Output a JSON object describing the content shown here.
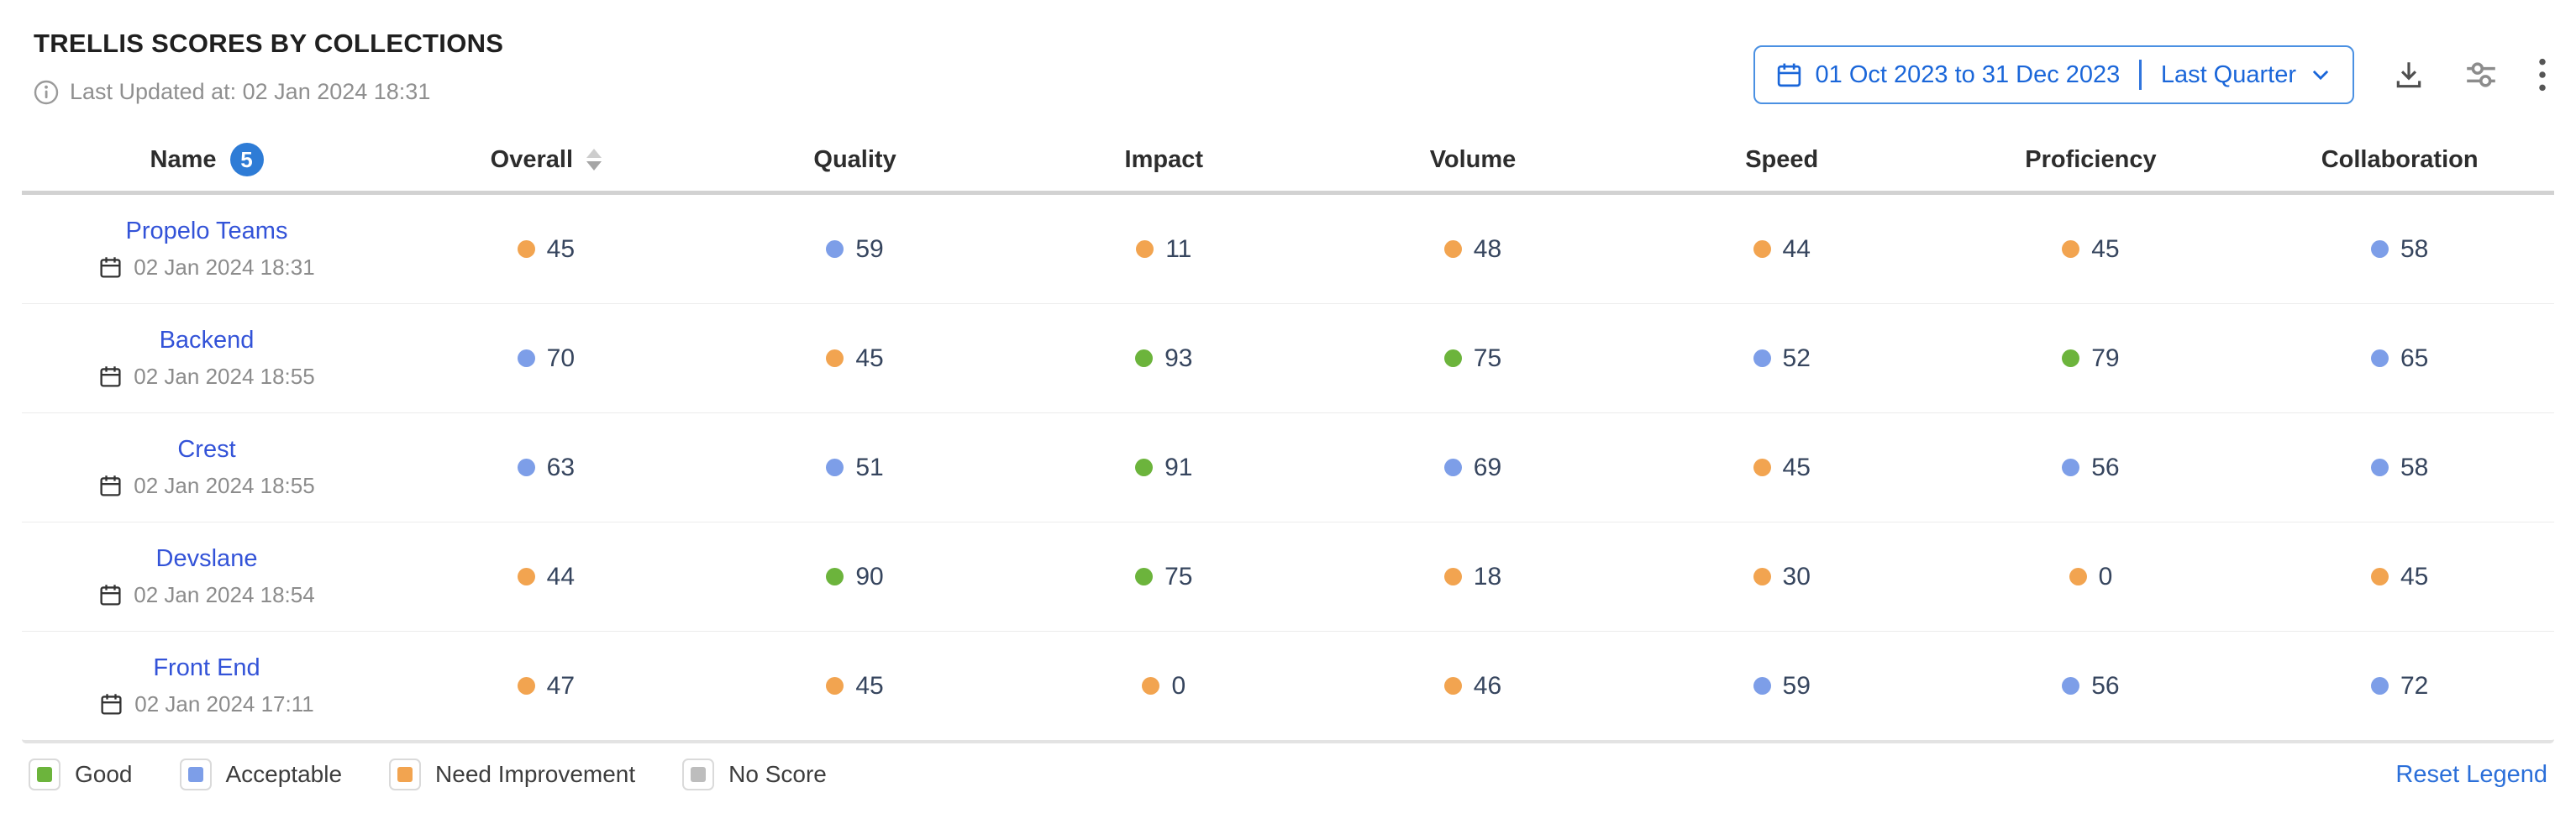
{
  "widget": {
    "title": "TRELLIS SCORES BY COLLECTIONS",
    "last_updated": "Last Updated at: 02 Jan 2024 18:31"
  },
  "toolbar": {
    "date_range": "01 Oct 2023 to 31 Dec 2023",
    "date_preset": "Last Quarter",
    "icons": {
      "calendar": "calendar-icon",
      "download": "download-icon",
      "settings": "sliders-settings-icon",
      "more": "kebab-menu-icon"
    }
  },
  "table": {
    "columns": [
      "Name",
      "Overall",
      "Quality",
      "Impact",
      "Volume",
      "Speed",
      "Proficiency",
      "Collaboration"
    ],
    "row_count": "5",
    "sorted_column": "Overall",
    "rows": [
      {
        "name": "Propelo Teams",
        "date": "02 Jan 2024 18:31",
        "scores": [
          {
            "value": "45",
            "level": "need_improvement"
          },
          {
            "value": "59",
            "level": "acceptable"
          },
          {
            "value": "11",
            "level": "need_improvement"
          },
          {
            "value": "48",
            "level": "need_improvement"
          },
          {
            "value": "44",
            "level": "need_improvement"
          },
          {
            "value": "45",
            "level": "need_improvement"
          },
          {
            "value": "58",
            "level": "acceptable"
          }
        ]
      },
      {
        "name": "Backend",
        "date": "02 Jan 2024 18:55",
        "scores": [
          {
            "value": "70",
            "level": "acceptable"
          },
          {
            "value": "45",
            "level": "need_improvement"
          },
          {
            "value": "93",
            "level": "good"
          },
          {
            "value": "75",
            "level": "good"
          },
          {
            "value": "52",
            "level": "acceptable"
          },
          {
            "value": "79",
            "level": "good"
          },
          {
            "value": "65",
            "level": "acceptable"
          }
        ]
      },
      {
        "name": "Crest",
        "date": "02 Jan 2024 18:55",
        "scores": [
          {
            "value": "63",
            "level": "acceptable"
          },
          {
            "value": "51",
            "level": "acceptable"
          },
          {
            "value": "91",
            "level": "good"
          },
          {
            "value": "69",
            "level": "acceptable"
          },
          {
            "value": "45",
            "level": "need_improvement"
          },
          {
            "value": "56",
            "level": "acceptable"
          },
          {
            "value": "58",
            "level": "acceptable"
          }
        ]
      },
      {
        "name": "Devslane",
        "date": "02 Jan 2024 18:54",
        "scores": [
          {
            "value": "44",
            "level": "need_improvement"
          },
          {
            "value": "90",
            "level": "good"
          },
          {
            "value": "75",
            "level": "good"
          },
          {
            "value": "18",
            "level": "need_improvement"
          },
          {
            "value": "30",
            "level": "need_improvement"
          },
          {
            "value": "0",
            "level": "need_improvement"
          },
          {
            "value": "45",
            "level": "need_improvement"
          }
        ]
      },
      {
        "name": "Front End",
        "date": "02 Jan 2024 17:11",
        "scores": [
          {
            "value": "47",
            "level": "need_improvement"
          },
          {
            "value": "45",
            "level": "need_improvement"
          },
          {
            "value": "0",
            "level": "need_improvement"
          },
          {
            "value": "46",
            "level": "need_improvement"
          },
          {
            "value": "59",
            "level": "acceptable"
          },
          {
            "value": "56",
            "level": "acceptable"
          },
          {
            "value": "72",
            "level": "acceptable"
          }
        ]
      }
    ]
  },
  "legend": {
    "items": [
      {
        "label": "Good",
        "level": "good"
      },
      {
        "label": "Acceptable",
        "level": "acceptable"
      },
      {
        "label": "Need Improvement",
        "level": "need_improvement"
      },
      {
        "label": "No Score",
        "level": "no_score"
      }
    ],
    "reset_label": "Reset Legend"
  },
  "colors": {
    "good": "#6CB43C",
    "acceptable": "#7D9EE8",
    "need_improvement": "#F2A450",
    "no_score": "#BDBDBD",
    "accent_blue": "#1A66D9",
    "link_blue": "#3353D8"
  }
}
